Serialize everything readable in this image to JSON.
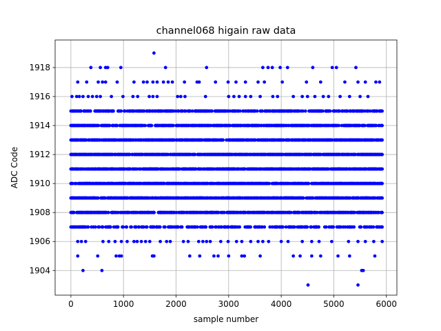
{
  "chart_data": {
    "type": "scatter",
    "title": "channel068 higain raw data",
    "xlabel": "sample number",
    "ylabel": "ADC Code",
    "xlim": [
      -300,
      6200
    ],
    "ylim": [
      1902.3,
      1919.9
    ],
    "xticks": [
      0,
      1000,
      2000,
      3000,
      4000,
      5000,
      6000
    ],
    "yticks": [
      1904,
      1906,
      1908,
      1910,
      1912,
      1914,
      1916,
      1918
    ],
    "grid": true,
    "marker_color": "#0000ff",
    "x_extent": [
      0,
      5920
    ],
    "levels": [
      {
        "y": 1915,
        "count": 420
      },
      {
        "y": 1914,
        "count": 560
      },
      {
        "y": 1913,
        "count": 640
      },
      {
        "y": 1912,
        "count": 700
      },
      {
        "y": 1911,
        "count": 700
      },
      {
        "y": 1910,
        "count": 700
      },
      {
        "y": 1909,
        "count": 640
      },
      {
        "y": 1908,
        "count": 560
      },
      {
        "y": 1907,
        "count": 260
      }
    ],
    "sparse_points": [
      {
        "x": 1580,
        "y": 1919
      },
      {
        "x": 380,
        "y": 1918
      },
      {
        "x": 560,
        "y": 1918
      },
      {
        "x": 660,
        "y": 1918
      },
      {
        "x": 700,
        "y": 1918
      },
      {
        "x": 950,
        "y": 1918
      },
      {
        "x": 1800,
        "y": 1918
      },
      {
        "x": 2580,
        "y": 1918
      },
      {
        "x": 3650,
        "y": 1918
      },
      {
        "x": 3750,
        "y": 1918
      },
      {
        "x": 3830,
        "y": 1918
      },
      {
        "x": 3980,
        "y": 1918
      },
      {
        "x": 4120,
        "y": 1918
      },
      {
        "x": 4600,
        "y": 1918
      },
      {
        "x": 4970,
        "y": 1918
      },
      {
        "x": 5050,
        "y": 1918
      },
      {
        "x": 5420,
        "y": 1918
      },
      {
        "x": 130,
        "y": 1917
      },
      {
        "x": 300,
        "y": 1917
      },
      {
        "x": 520,
        "y": 1917
      },
      {
        "x": 600,
        "y": 1917
      },
      {
        "x": 660,
        "y": 1917
      },
      {
        "x": 880,
        "y": 1917
      },
      {
        "x": 1200,
        "y": 1917
      },
      {
        "x": 1380,
        "y": 1917
      },
      {
        "x": 1450,
        "y": 1917
      },
      {
        "x": 1560,
        "y": 1917
      },
      {
        "x": 1640,
        "y": 1917
      },
      {
        "x": 1760,
        "y": 1917
      },
      {
        "x": 1850,
        "y": 1917
      },
      {
        "x": 1930,
        "y": 1917
      },
      {
        "x": 2160,
        "y": 1917
      },
      {
        "x": 2400,
        "y": 1917
      },
      {
        "x": 2440,
        "y": 1917
      },
      {
        "x": 2750,
        "y": 1917
      },
      {
        "x": 2990,
        "y": 1917
      },
      {
        "x": 3140,
        "y": 1917
      },
      {
        "x": 3320,
        "y": 1917
      },
      {
        "x": 3560,
        "y": 1917
      },
      {
        "x": 3680,
        "y": 1917
      },
      {
        "x": 4020,
        "y": 1917
      },
      {
        "x": 4480,
        "y": 1917
      },
      {
        "x": 4750,
        "y": 1917
      },
      {
        "x": 5210,
        "y": 1917
      },
      {
        "x": 5460,
        "y": 1917
      },
      {
        "x": 5600,
        "y": 1917
      },
      {
        "x": 5800,
        "y": 1917
      },
      {
        "x": 5870,
        "y": 1917
      },
      {
        "x": 20,
        "y": 1916
      },
      {
        "x": 110,
        "y": 1916
      },
      {
        "x": 160,
        "y": 1916
      },
      {
        "x": 230,
        "y": 1916
      },
      {
        "x": 330,
        "y": 1916
      },
      {
        "x": 410,
        "y": 1916
      },
      {
        "x": 490,
        "y": 1916
      },
      {
        "x": 560,
        "y": 1916
      },
      {
        "x": 770,
        "y": 1916
      },
      {
        "x": 990,
        "y": 1916
      },
      {
        "x": 1180,
        "y": 1916
      },
      {
        "x": 1270,
        "y": 1916
      },
      {
        "x": 1490,
        "y": 1916
      },
      {
        "x": 1560,
        "y": 1916
      },
      {
        "x": 1640,
        "y": 1916
      },
      {
        "x": 2030,
        "y": 1916
      },
      {
        "x": 2090,
        "y": 1916
      },
      {
        "x": 2170,
        "y": 1916
      },
      {
        "x": 2560,
        "y": 1916
      },
      {
        "x": 3000,
        "y": 1916
      },
      {
        "x": 3100,
        "y": 1916
      },
      {
        "x": 3200,
        "y": 1916
      },
      {
        "x": 3320,
        "y": 1916
      },
      {
        "x": 3420,
        "y": 1916
      },
      {
        "x": 3600,
        "y": 1916
      },
      {
        "x": 3840,
        "y": 1916
      },
      {
        "x": 3930,
        "y": 1916
      },
      {
        "x": 4230,
        "y": 1916
      },
      {
        "x": 4400,
        "y": 1916
      },
      {
        "x": 4500,
        "y": 1916
      },
      {
        "x": 4640,
        "y": 1916
      },
      {
        "x": 4800,
        "y": 1916
      },
      {
        "x": 4900,
        "y": 1916
      },
      {
        "x": 5120,
        "y": 1916
      },
      {
        "x": 5300,
        "y": 1916
      },
      {
        "x": 5500,
        "y": 1916
      },
      {
        "x": 5650,
        "y": 1916
      },
      {
        "x": 130,
        "y": 1906
      },
      {
        "x": 200,
        "y": 1906
      },
      {
        "x": 280,
        "y": 1906
      },
      {
        "x": 610,
        "y": 1906
      },
      {
        "x": 720,
        "y": 1906
      },
      {
        "x": 840,
        "y": 1906
      },
      {
        "x": 960,
        "y": 1906
      },
      {
        "x": 1070,
        "y": 1906
      },
      {
        "x": 1200,
        "y": 1906
      },
      {
        "x": 1260,
        "y": 1906
      },
      {
        "x": 1340,
        "y": 1906
      },
      {
        "x": 1420,
        "y": 1906
      },
      {
        "x": 1500,
        "y": 1906
      },
      {
        "x": 1700,
        "y": 1906
      },
      {
        "x": 1820,
        "y": 1906
      },
      {
        "x": 1890,
        "y": 1906
      },
      {
        "x": 2140,
        "y": 1906
      },
      {
        "x": 2230,
        "y": 1906
      },
      {
        "x": 2430,
        "y": 1906
      },
      {
        "x": 2510,
        "y": 1906
      },
      {
        "x": 2580,
        "y": 1906
      },
      {
        "x": 2650,
        "y": 1906
      },
      {
        "x": 2850,
        "y": 1906
      },
      {
        "x": 2990,
        "y": 1906
      },
      {
        "x": 3150,
        "y": 1906
      },
      {
        "x": 3250,
        "y": 1906
      },
      {
        "x": 3420,
        "y": 1906
      },
      {
        "x": 3560,
        "y": 1906
      },
      {
        "x": 3650,
        "y": 1906
      },
      {
        "x": 3760,
        "y": 1906
      },
      {
        "x": 4000,
        "y": 1906
      },
      {
        "x": 4130,
        "y": 1906
      },
      {
        "x": 4400,
        "y": 1906
      },
      {
        "x": 4580,
        "y": 1906
      },
      {
        "x": 4720,
        "y": 1906
      },
      {
        "x": 4960,
        "y": 1906
      },
      {
        "x": 5280,
        "y": 1906
      },
      {
        "x": 5460,
        "y": 1906
      },
      {
        "x": 5600,
        "y": 1906
      },
      {
        "x": 5760,
        "y": 1906
      },
      {
        "x": 5920,
        "y": 1906
      },
      {
        "x": 130,
        "y": 1905
      },
      {
        "x": 510,
        "y": 1905
      },
      {
        "x": 860,
        "y": 1905
      },
      {
        "x": 920,
        "y": 1905
      },
      {
        "x": 960,
        "y": 1905
      },
      {
        "x": 1550,
        "y": 1905
      },
      {
        "x": 1580,
        "y": 1905
      },
      {
        "x": 2260,
        "y": 1905
      },
      {
        "x": 2450,
        "y": 1905
      },
      {
        "x": 2720,
        "y": 1905
      },
      {
        "x": 2800,
        "y": 1905
      },
      {
        "x": 3000,
        "y": 1905
      },
      {
        "x": 3250,
        "y": 1905
      },
      {
        "x": 3300,
        "y": 1905
      },
      {
        "x": 3600,
        "y": 1905
      },
      {
        "x": 4230,
        "y": 1905
      },
      {
        "x": 4360,
        "y": 1905
      },
      {
        "x": 4580,
        "y": 1905
      },
      {
        "x": 4750,
        "y": 1905
      },
      {
        "x": 5080,
        "y": 1905
      },
      {
        "x": 5300,
        "y": 1905
      },
      {
        "x": 5780,
        "y": 1905
      },
      {
        "x": 230,
        "y": 1904
      },
      {
        "x": 590,
        "y": 1904
      },
      {
        "x": 5530,
        "y": 1904
      },
      {
        "x": 5560,
        "y": 1904
      },
      {
        "x": 4510,
        "y": 1903
      },
      {
        "x": 5460,
        "y": 1903
      }
    ]
  }
}
